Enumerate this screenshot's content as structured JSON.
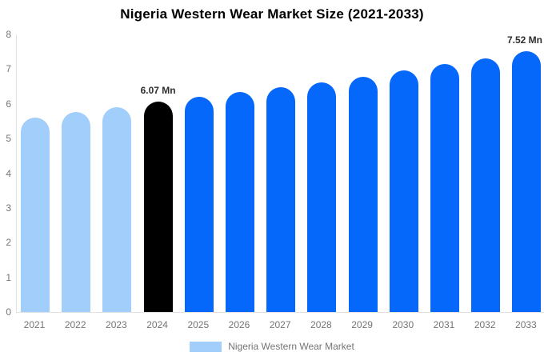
{
  "chart_data": {
    "type": "bar",
    "title": "Nigeria Western Wear Market Size (2021-2033)",
    "categories": [
      "2021",
      "2022",
      "2023",
      "2024",
      "2025",
      "2026",
      "2027",
      "2028",
      "2029",
      "2030",
      "2031",
      "2032",
      "2033"
    ],
    "values": [
      5.61,
      5.76,
      5.9,
      6.07,
      6.2,
      6.33,
      6.47,
      6.62,
      6.79,
      6.96,
      7.14,
      7.32,
      7.52
    ],
    "point_labels": [
      "",
      "",
      "",
      "6.07 Mn",
      "",
      "",
      "",
      "",
      "",
      "",
      "",
      "",
      "7.52 Mn"
    ],
    "bar_colors": [
      "#a2cefc",
      "#a2cefc",
      "#a2cefc",
      "#000000",
      "#0568fb",
      "#0568fb",
      "#0568fb",
      "#0568fb",
      "#0568fb",
      "#0568fb",
      "#0568fb",
      "#0568fb",
      "#0568fb"
    ],
    "ylim": [
      0,
      8
    ],
    "yticks": [
      0,
      1,
      2,
      3,
      4,
      5,
      6,
      7,
      8
    ],
    "grid": false,
    "xlabel": "",
    "ylabel": "",
    "legend": {
      "position": "bottom",
      "items": [
        {
          "label": "Nigeria Western Wear Market",
          "swatch_color": "#a2cefc"
        }
      ]
    },
    "colors": {
      "past_bar": "#a2cefc",
      "highlight_bar": "#000000",
      "forecast_bar": "#0568fb",
      "axis_line": "#e2e2e2",
      "tick_label": "#757575",
      "annotation": "#2e2e2e",
      "title": "#000000",
      "background": "#ffffff"
    }
  }
}
